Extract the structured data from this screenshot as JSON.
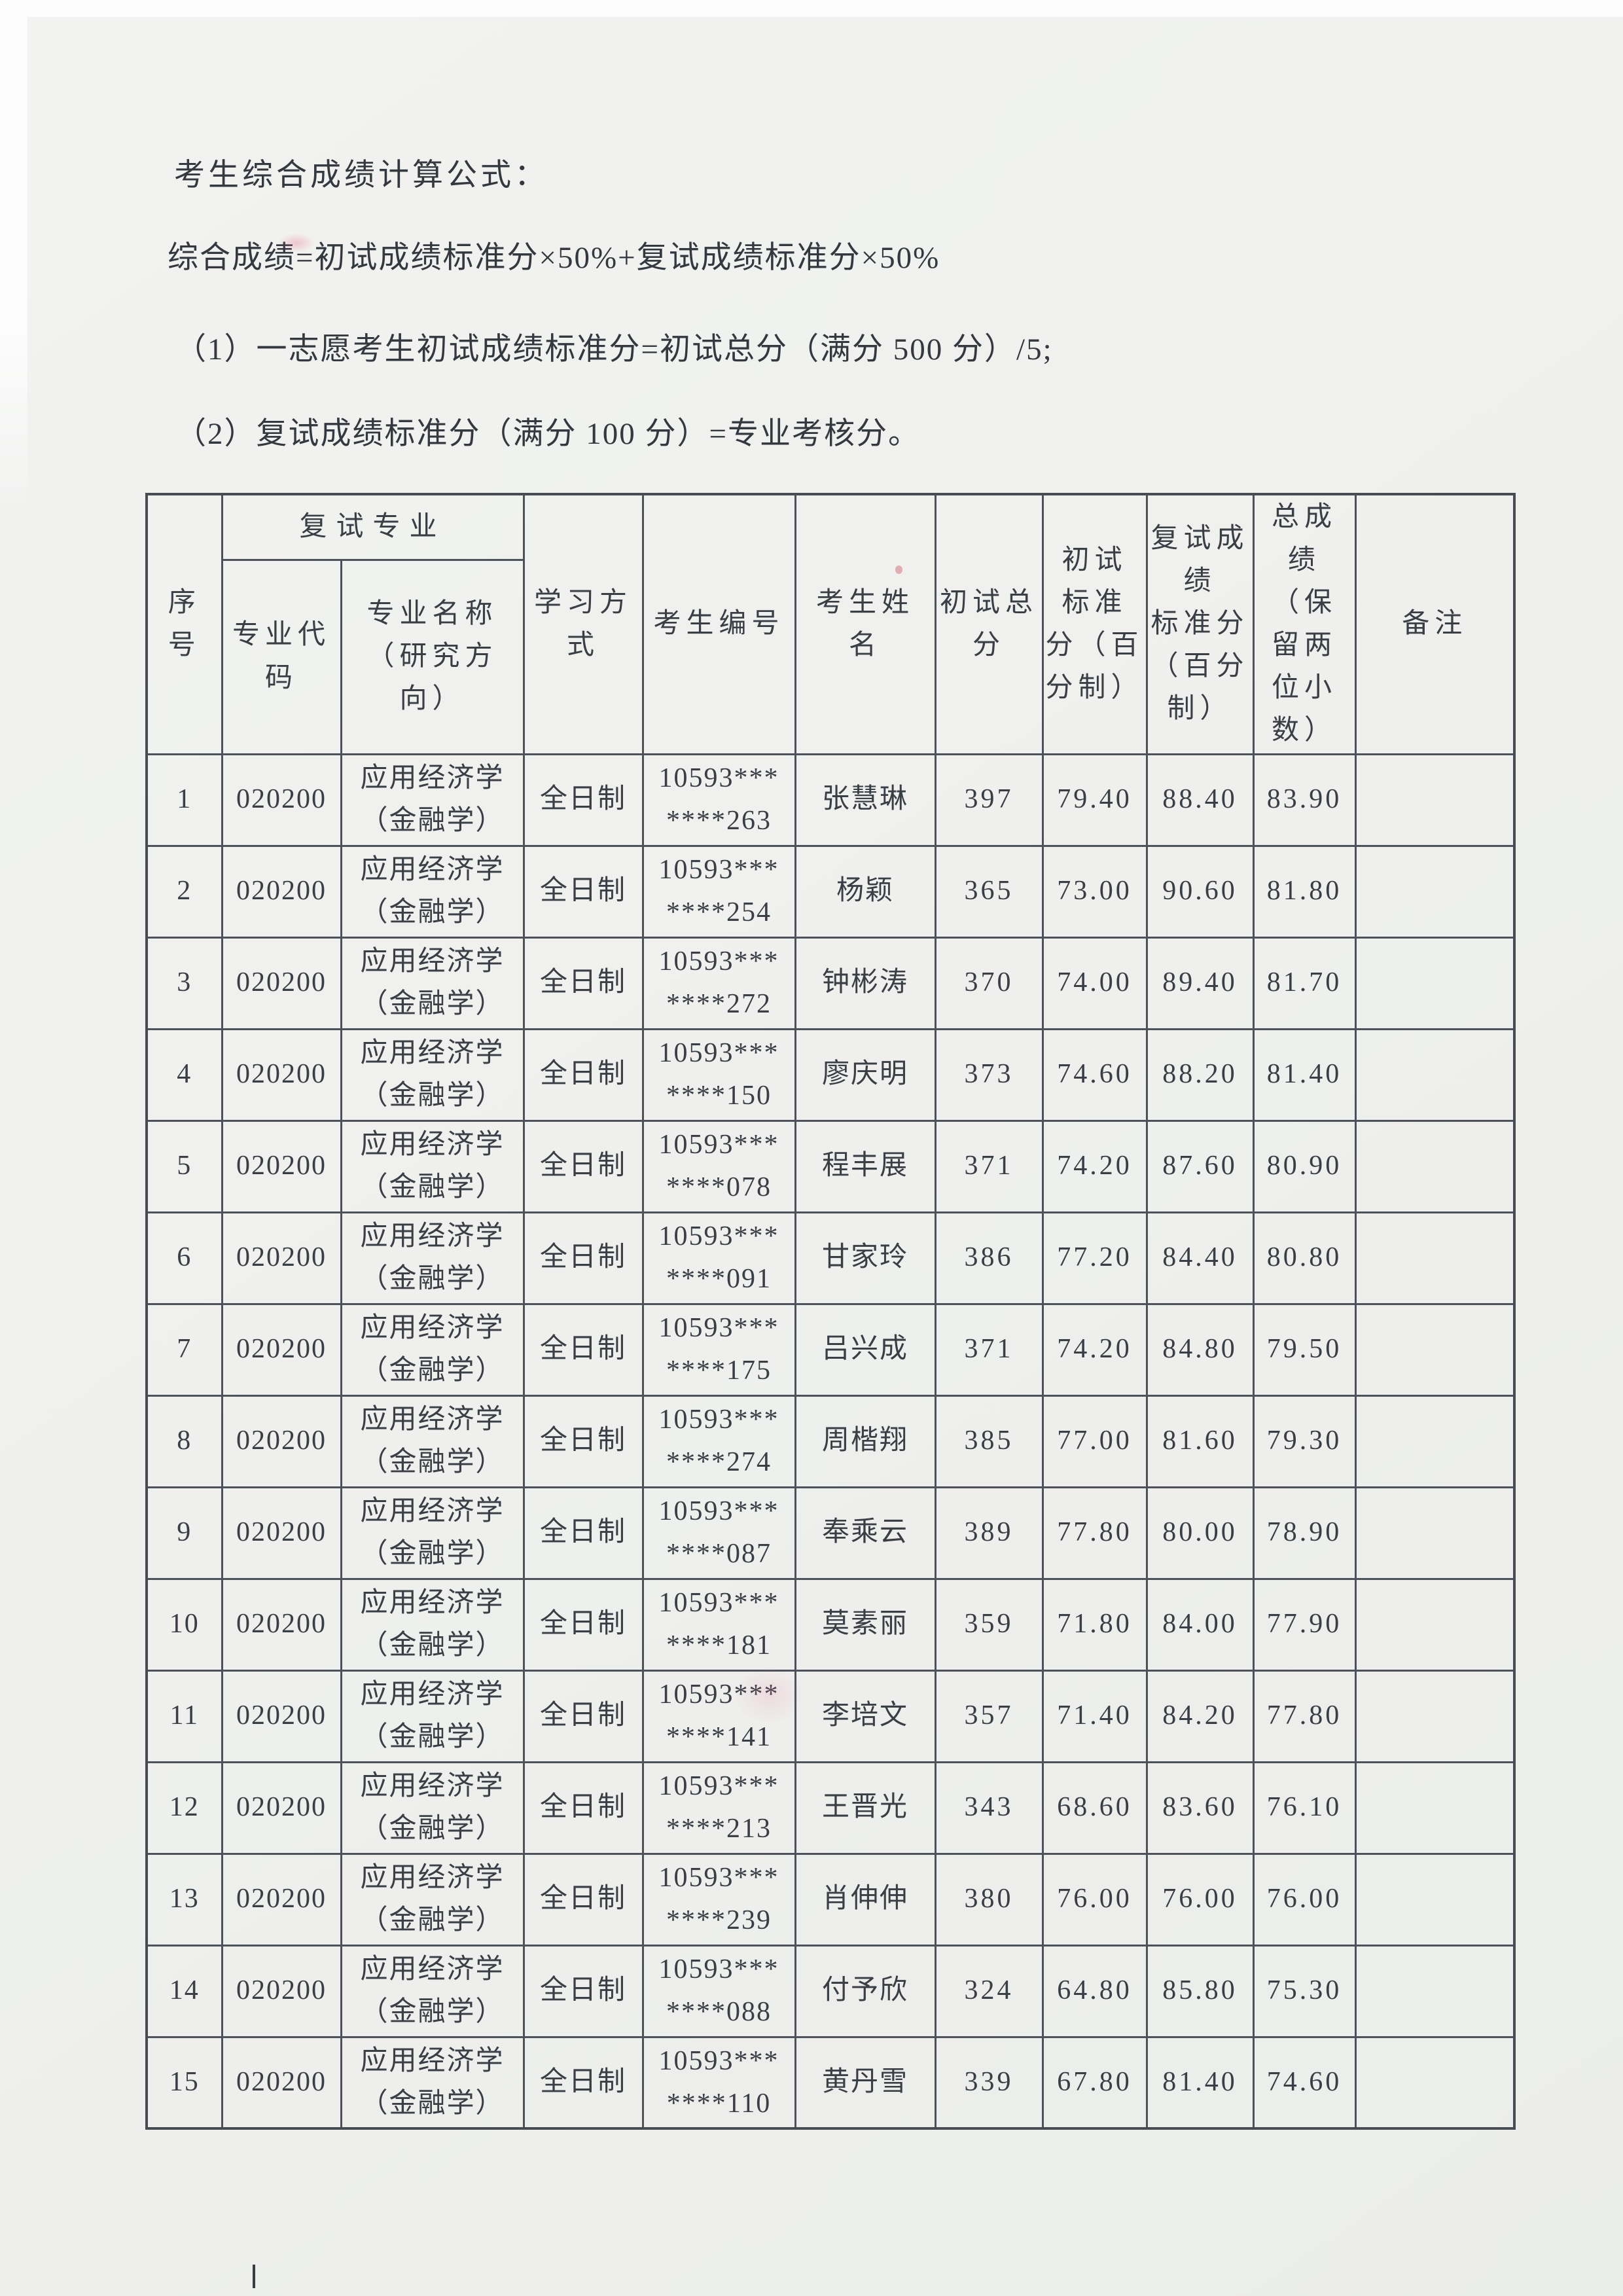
{
  "meta": {
    "colors": {
      "paper": "#eff0ee",
      "ink": "#3a3e45",
      "grid": "#4d525a"
    }
  },
  "intro": {
    "title": "考生综合成绩计算公式：",
    "formula": "综合成绩=初试成绩标准分×50%+复试成绩标准分×50%",
    "note1": "（1）一志愿考生初试成绩标准分=初试总分（满分 500 分）/5;",
    "note2": "（2）复试成绩标准分（满分 100 分）=专业考核分。"
  },
  "table": {
    "headers": {
      "seq": "序\n号",
      "retest_major_group": "复试专业",
      "major_code": "专业代\n码",
      "major_name": "专业名称\n（研究方\n向）",
      "study_mode": "学习方\n式",
      "candidate_id": "考生编号",
      "candidate_name": "考生姓\n名",
      "initial_total": "初试总\n分",
      "initial_std": "初试\n标准\n分（百\n分制）",
      "retest_std": "复试成\n绩\n标准分\n（百分\n制）",
      "total_score": "总成\n绩\n（保\n留两\n位小\n数）",
      "remark": "备注"
    },
    "rows": [
      {
        "seq": "1",
        "code": "020200",
        "major": "应用经济学\n（金融学）",
        "mode": "全日制",
        "cand_id": "10593***\n****263",
        "name": "张慧琳",
        "initial_total": "397",
        "initial_std": "79.40",
        "retest_std": "88.40",
        "total": "83.90",
        "remark": ""
      },
      {
        "seq": "2",
        "code": "020200",
        "major": "应用经济学\n（金融学）",
        "mode": "全日制",
        "cand_id": "10593***\n****254",
        "name": "杨颖",
        "initial_total": "365",
        "initial_std": "73.00",
        "retest_std": "90.60",
        "total": "81.80",
        "remark": ""
      },
      {
        "seq": "3",
        "code": "020200",
        "major": "应用经济学\n（金融学）",
        "mode": "全日制",
        "cand_id": "10593***\n****272",
        "name": "钟彬涛",
        "initial_total": "370",
        "initial_std": "74.00",
        "retest_std": "89.40",
        "total": "81.70",
        "remark": ""
      },
      {
        "seq": "4",
        "code": "020200",
        "major": "应用经济学\n（金融学）",
        "mode": "全日制",
        "cand_id": "10593***\n****150",
        "name": "廖庆明",
        "initial_total": "373",
        "initial_std": "74.60",
        "retest_std": "88.20",
        "total": "81.40",
        "remark": ""
      },
      {
        "seq": "5",
        "code": "020200",
        "major": "应用经济学\n（金融学）",
        "mode": "全日制",
        "cand_id": "10593***\n****078",
        "name": "程丰展",
        "initial_total": "371",
        "initial_std": "74.20",
        "retest_std": "87.60",
        "total": "80.90",
        "remark": ""
      },
      {
        "seq": "6",
        "code": "020200",
        "major": "应用经济学\n（金融学）",
        "mode": "全日制",
        "cand_id": "10593***\n****091",
        "name": "甘家玲",
        "initial_total": "386",
        "initial_std": "77.20",
        "retest_std": "84.40",
        "total": "80.80",
        "remark": ""
      },
      {
        "seq": "7",
        "code": "020200",
        "major": "应用经济学\n（金融学）",
        "mode": "全日制",
        "cand_id": "10593***\n****175",
        "name": "吕兴成",
        "initial_total": "371",
        "initial_std": "74.20",
        "retest_std": "84.80",
        "total": "79.50",
        "remark": ""
      },
      {
        "seq": "8",
        "code": "020200",
        "major": "应用经济学\n（金融学）",
        "mode": "全日制",
        "cand_id": "10593***\n****274",
        "name": "周楷翔",
        "initial_total": "385",
        "initial_std": "77.00",
        "retest_std": "81.60",
        "total": "79.30",
        "remark": ""
      },
      {
        "seq": "9",
        "code": "020200",
        "major": "应用经济学\n（金融学）",
        "mode": "全日制",
        "cand_id": "10593***\n****087",
        "name": "奉乘云",
        "initial_total": "389",
        "initial_std": "77.80",
        "retest_std": "80.00",
        "total": "78.90",
        "remark": ""
      },
      {
        "seq": "10",
        "code": "020200",
        "major": "应用经济学\n（金融学）",
        "mode": "全日制",
        "cand_id": "10593***\n****181",
        "name": "莫素丽",
        "initial_total": "359",
        "initial_std": "71.80",
        "retest_std": "84.00",
        "total": "77.90",
        "remark": ""
      },
      {
        "seq": "11",
        "code": "020200",
        "major": "应用经济学\n（金融学）",
        "mode": "全日制",
        "cand_id": "10593***\n****141",
        "name": "李培文",
        "initial_total": "357",
        "initial_std": "71.40",
        "retest_std": "84.20",
        "total": "77.80",
        "remark": ""
      },
      {
        "seq": "12",
        "code": "020200",
        "major": "应用经济学\n（金融学）",
        "mode": "全日制",
        "cand_id": "10593***\n****213",
        "name": "王晋光",
        "initial_total": "343",
        "initial_std": "68.60",
        "retest_std": "83.60",
        "total": "76.10",
        "remark": ""
      },
      {
        "seq": "13",
        "code": "020200",
        "major": "应用经济学\n（金融学）",
        "mode": "全日制",
        "cand_id": "10593***\n****239",
        "name": "肖伸伸",
        "initial_total": "380",
        "initial_std": "76.00",
        "retest_std": "76.00",
        "total": "76.00",
        "remark": ""
      },
      {
        "seq": "14",
        "code": "020200",
        "major": "应用经济学\n（金融学）",
        "mode": "全日制",
        "cand_id": "10593***\n****088",
        "name": "付予欣",
        "initial_total": "324",
        "initial_std": "64.80",
        "retest_std": "85.80",
        "total": "75.30",
        "remark": ""
      },
      {
        "seq": "15",
        "code": "020200",
        "major": "应用经济学\n（金融学）",
        "mode": "全日制",
        "cand_id": "10593***\n****110",
        "name": "黄丹雪",
        "initial_total": "339",
        "initial_std": "67.80",
        "retest_std": "81.40",
        "total": "74.60",
        "remark": ""
      }
    ]
  }
}
